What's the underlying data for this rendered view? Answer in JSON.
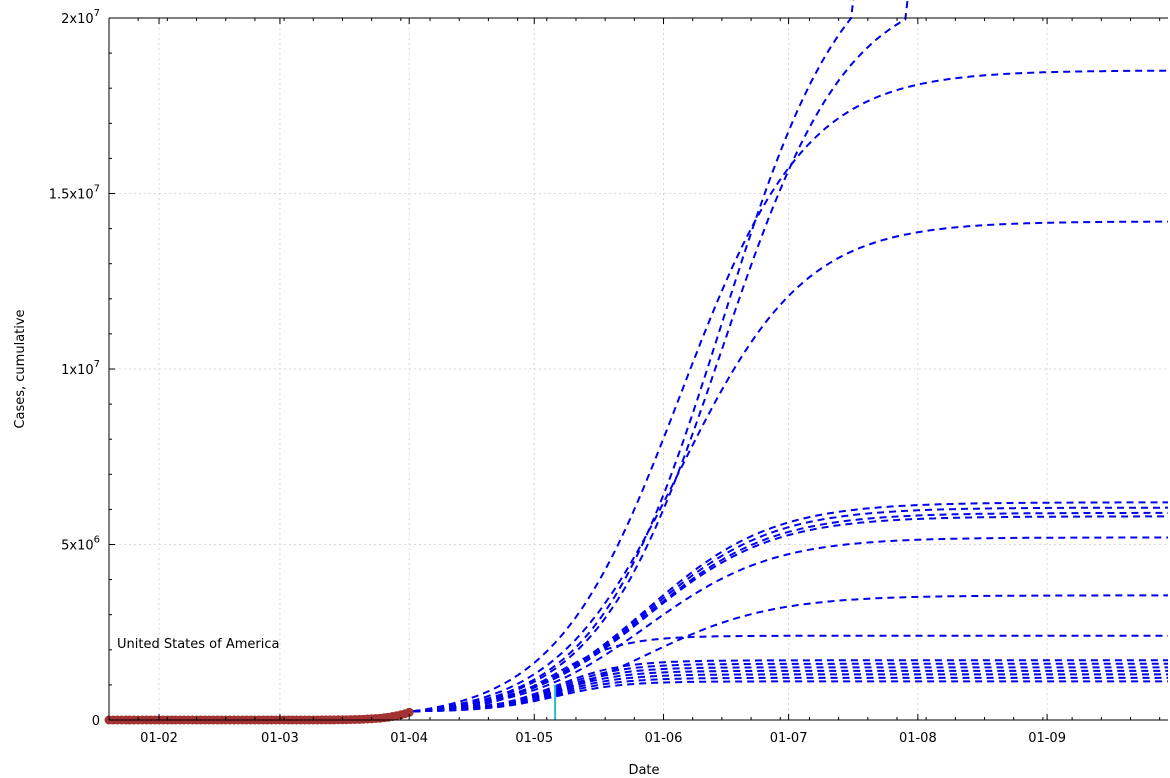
{
  "chart_data": {
    "type": "line",
    "xlabel": "Date",
    "ylabel": "Cases, cumulative",
    "annotation": "United States of America",
    "x_tick_labels": [
      "01-02",
      "01-03",
      "01-04",
      "01-05",
      "01-06",
      "01-07",
      "01-08",
      "01-09"
    ],
    "y_ticks": [
      {
        "value": 0,
        "base": "0",
        "exp": ""
      },
      {
        "value": 5000000,
        "base": "5x10",
        "exp": "6"
      },
      {
        "value": 10000000,
        "base": "1x10",
        "exp": "7"
      },
      {
        "value": 15000000,
        "base": "1.5x10",
        "exp": "7"
      },
      {
        "value": 20000000,
        "base": "2x10",
        "exp": "7"
      }
    ],
    "xlim": [
      "2020-01-20",
      "2020-09-30"
    ],
    "ylim": [
      0,
      20000000
    ],
    "grid": true,
    "colors": {
      "projection": "#0000ee",
      "observed": "#a33333",
      "marker": "#22bbcc"
    },
    "marker_date": "2020-05-06",
    "marker_value": 1000000,
    "projection_start_date": "2020-04-02",
    "projection_start_value": 250000,
    "projection_midpoint_date": "2020-05-06",
    "projection_final_values": [
      22500000,
      21000000,
      18500000,
      14200000,
      6200000,
      6050000,
      5900000,
      5800000,
      5200000,
      3550000,
      2400000,
      1700000,
      1600000,
      1500000,
      1400000,
      1300000,
      1200000,
      1100000
    ],
    "observed_series": {
      "name": "United States of America",
      "start_date": "2020-01-20",
      "end_date": "2020-04-01",
      "last_value": 220000
    }
  }
}
